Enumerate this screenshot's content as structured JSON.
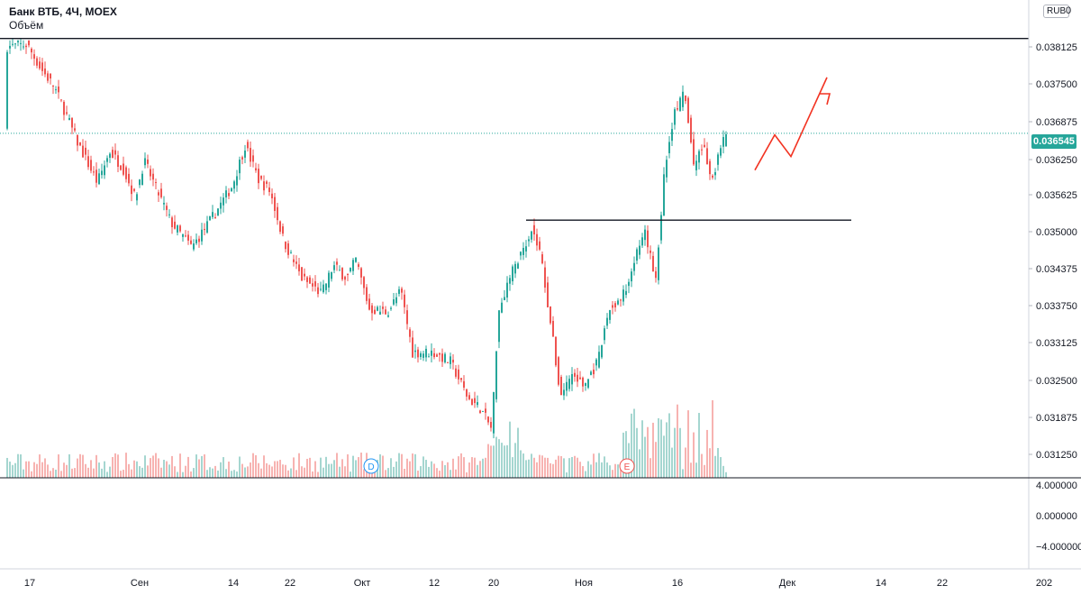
{
  "header": {
    "symbol_title": "Банк ВТБ, 4Ч, MOEX",
    "volume_label": "Объём",
    "currency_badge": "RUB",
    "corner_value": "0"
  },
  "colors": {
    "up": "#26a69a",
    "down": "#ef5350",
    "volume_up": "#a5d6d0",
    "volume_down": "#f7b3b1",
    "line": "#131722",
    "dotted": "#26a69a",
    "arrow": "#f23322",
    "axis_text": "#131722",
    "separator": "#131722"
  },
  "price_axis": {
    "ticks": [
      "0.038125",
      "0.037500",
      "0.036875",
      "0.036250",
      "0.035625",
      "0.035000",
      "0.034375",
      "0.033750",
      "0.033125",
      "0.032500",
      "0.031875",
      "0.031250"
    ],
    "last_price": "0.036545"
  },
  "indicator_axis": {
    "ticks": [
      "4.000000",
      "0.000000",
      "−4.000000"
    ]
  },
  "time_axis": {
    "ticks": [
      "17",
      "Сен",
      "14",
      "22",
      "Окт",
      "12",
      "20",
      "Ноя",
      "16",
      "Дек",
      "14",
      "22",
      "202"
    ]
  },
  "markers": {
    "dividend": "D",
    "earnings": "E"
  },
  "chart_data": {
    "type": "candlestick",
    "title": "Банк ВТБ, 4Ч, MOEX",
    "y_axis": "price, RUB",
    "ylim": [
      0.03097,
      0.03863
    ],
    "x_range": [
      "17 Aug",
      "end Dec"
    ],
    "period": "4H",
    "trend_description": "Price falls from ~0.0380 (mid Aug) to ~0.0317 (20 Oct), rebounds to ~0.0351, dips to ~0.0322 in early Nov, then breaks out above 0.0351 to ~0.0373 around 16 Nov, last price 0.036545.",
    "levels": [
      {
        "label": "resistance",
        "value": 0.03808
      },
      {
        "label": "breakout",
        "value": 0.03514
      },
      {
        "label": "last",
        "value": 0.036545
      }
    ],
    "price_path": [
      {
        "x": "17 Aug",
        "close": 0.0379
      },
      {
        "x": "24 Aug",
        "close": 0.0374
      },
      {
        "x": "01 Sep",
        "close": 0.0361
      },
      {
        "x": "10 Sep",
        "close": 0.0358
      },
      {
        "x": "15 Sep",
        "close": 0.0351
      },
      {
        "x": "17 Sep",
        "close": 0.0362
      },
      {
        "x": "21 Sep",
        "close": 0.0357
      },
      {
        "x": "25 Sep",
        "close": 0.0346
      },
      {
        "x": "02 Oct",
        "close": 0.0344
      },
      {
        "x": "06 Oct",
        "close": 0.0338
      },
      {
        "x": "12 Oct",
        "close": 0.0333
      },
      {
        "x": "20 Oct",
        "close": 0.0319
      },
      {
        "x": "22 Oct",
        "close": 0.0337
      },
      {
        "x": "26 Oct",
        "close": 0.035
      },
      {
        "x": "30 Oct",
        "close": 0.0338
      },
      {
        "x": "03 Nov",
        "close": 0.0323
      },
      {
        "x": "09 Nov",
        "close": 0.0337
      },
      {
        "x": "12 Nov",
        "close": 0.0346
      },
      {
        "x": "14 Nov",
        "close": 0.0358
      },
      {
        "x": "16 Nov",
        "close": 0.0369
      },
      {
        "x": "18 Nov",
        "close": 0.036
      },
      {
        "x": "20 Nov",
        "close": 0.036545
      }
    ],
    "projection": "up-arrow forecast from ~0.0360 to ~0.0375"
  }
}
